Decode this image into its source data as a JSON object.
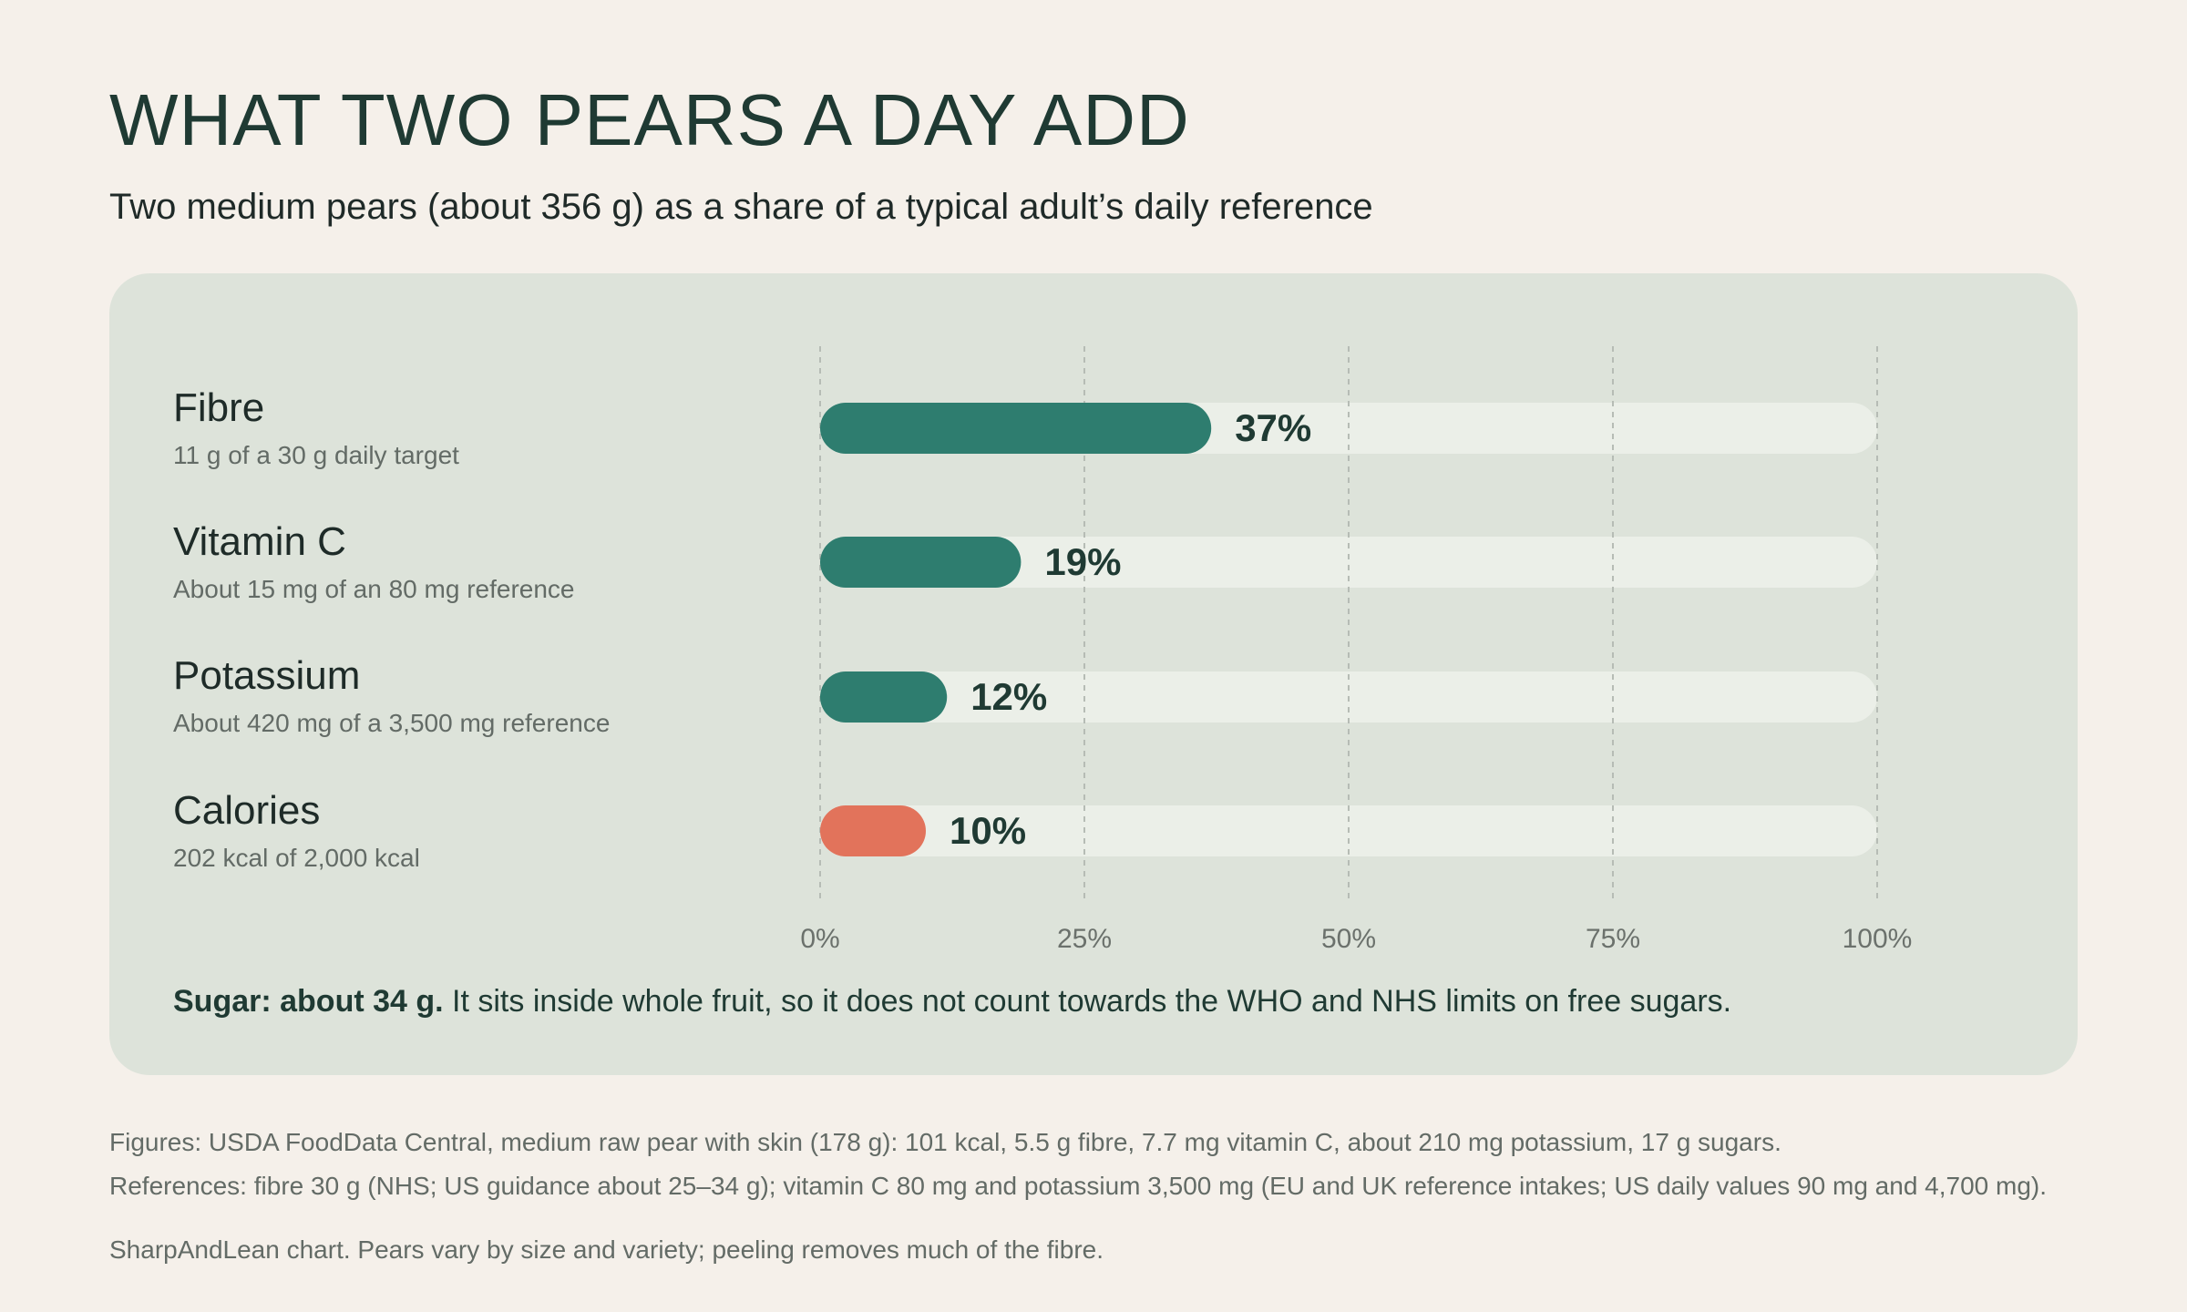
{
  "header": {
    "title": "WHAT TWO PEARS A DAY ADD",
    "subtitle": "Two medium pears (about 356 g) as a share of a typical adult’s daily reference"
  },
  "colors": {
    "bar_main": "#2e7d6f",
    "bar_accent": "#e2735b",
    "track": "#ebefe8",
    "grid": "#b6bcb5",
    "value_text": "#1f3a33",
    "tick_text": "#6b716c"
  },
  "chart_data": {
    "type": "bar",
    "orientation": "horizontal",
    "categories": [
      "Fibre",
      "Vitamin C",
      "Potassium",
      "Calories"
    ],
    "descriptions": [
      "11 g of a 30 g daily target",
      "About 15 mg of an 80 mg reference",
      "About 420 mg of a 3,500 mg reference",
      "202 kcal of 2,000 kcal"
    ],
    "values": [
      37,
      19,
      12,
      10
    ],
    "value_labels": [
      "37%",
      "19%",
      "12%",
      "10%"
    ],
    "highlight": [
      false,
      false,
      false,
      true
    ],
    "xlim": [
      0,
      100
    ],
    "xticks": [
      0,
      25,
      50,
      75,
      100
    ],
    "xtick_labels": [
      "0%",
      "25%",
      "50%",
      "75%",
      "100%"
    ],
    "grid": true,
    "title": "",
    "xlabel": "",
    "ylabel": ""
  },
  "note": {
    "bold": "Sugar: about 34 g.",
    "text": " It sits inside whole fruit, so it does not count towards the WHO and NHS limits on free sugars."
  },
  "footer": {
    "figures": "Figures: USDA FoodData Central, medium raw pear with skin (178 g): 101 kcal, 5.5 g fibre, 7.7 mg vitamin C, about 210 mg potassium, 17 g sugars.",
    "references": "References: fibre 30 g (NHS; US guidance about 25–34 g); vitamin C 80 mg and potassium 3,500 mg (EU and UK reference intakes; US daily values 90 mg and 4,700 mg).",
    "credit": "SharpAndLean chart. Pears vary by size and variety; peeling removes much of the fibre."
  }
}
